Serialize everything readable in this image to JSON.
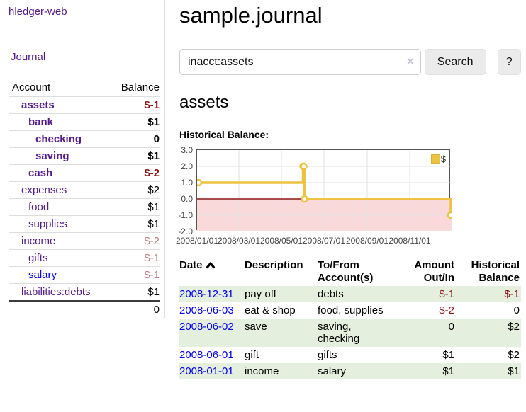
{
  "app": {
    "brand": "hledger-web",
    "nav_journal": "Journal"
  },
  "sidebar": {
    "headers": {
      "account": "Account",
      "balance": "Balance"
    },
    "accounts": [
      {
        "name": "assets",
        "depth": 1,
        "bold": true,
        "balance": "$-1",
        "negative": true,
        "link_color": "purple"
      },
      {
        "name": "bank",
        "depth": 2,
        "bold": true,
        "balance": "$1",
        "negative": false,
        "link_color": "purple"
      },
      {
        "name": "checking",
        "depth": 3,
        "bold": true,
        "balance": "0",
        "negative": false,
        "link_color": "purple"
      },
      {
        "name": "saving",
        "depth": 3,
        "bold": true,
        "balance": "$1",
        "negative": false,
        "link_color": "purple"
      },
      {
        "name": "cash",
        "depth": 2,
        "bold": true,
        "balance": "$-2",
        "negative": true,
        "link_color": "purple"
      },
      {
        "name": "expenses",
        "depth": 1,
        "bold": false,
        "balance": "$2",
        "negative": false,
        "link_color": "purple"
      },
      {
        "name": "food",
        "depth": 2,
        "bold": false,
        "balance": "$1",
        "negative": false,
        "link_color": "purple"
      },
      {
        "name": "supplies",
        "depth": 2,
        "bold": false,
        "balance": "$1",
        "negative": false,
        "link_color": "purple"
      },
      {
        "name": "income",
        "depth": 1,
        "bold": false,
        "balance": "$-2",
        "negative": true,
        "link_color": "purple"
      },
      {
        "name": "gifts",
        "depth": 2,
        "bold": false,
        "balance": "$-1",
        "negative": true,
        "link_color": "purple"
      },
      {
        "name": "salary",
        "depth": 2,
        "bold": false,
        "balance": "$-1",
        "negative": true,
        "link_color": "blue"
      },
      {
        "name": "liabilities:debts",
        "depth": 1,
        "bold": false,
        "balance": "$1",
        "negative": false,
        "link_color": "purple"
      }
    ],
    "total": "0"
  },
  "header": {
    "title": "sample.journal"
  },
  "search": {
    "value": "inacct:assets",
    "clear_icon": "×",
    "button_label": "Search",
    "help_label": "?"
  },
  "register": {
    "heading": "assets",
    "chart_label": "Historical Balance:",
    "table": {
      "headers": {
        "date": "Date",
        "description": "Description",
        "tofrom": "To/From Account(s)",
        "amount": "Amount Out/In",
        "balance": "Historical Balance"
      },
      "rows": [
        {
          "date": "2008-12-31",
          "description": "pay off",
          "accounts": "debts",
          "amount": "$-1",
          "amount_negative": true,
          "balance": "$-1",
          "balance_negative": true
        },
        {
          "date": "2008-06-03",
          "description": "eat & shop",
          "accounts": "food, supplies",
          "amount": "$-2",
          "amount_negative": true,
          "balance": "0",
          "balance_negative": false
        },
        {
          "date": "2008-06-02",
          "description": "save",
          "accounts": "saving, checking",
          "amount": "0",
          "amount_negative": false,
          "balance": "$2",
          "balance_negative": false
        },
        {
          "date": "2008-06-01",
          "description": "gift",
          "accounts": "gifts",
          "amount": "$1",
          "amount_negative": false,
          "balance": "$2",
          "balance_negative": false
        },
        {
          "date": "2008-01-01",
          "description": "income",
          "accounts": "salary",
          "amount": "$1",
          "amount_negative": false,
          "balance": "$1",
          "balance_negative": false
        }
      ]
    }
  },
  "chart_data": {
    "type": "line",
    "title": "Historical Balance",
    "step": true,
    "series": [
      {
        "name": "$",
        "color": "#edc240",
        "points": [
          [
            "2008-01-01",
            1
          ],
          [
            "2008-06-01",
            2
          ],
          [
            "2008-06-02",
            2
          ],
          [
            "2008-06-03",
            0
          ],
          [
            "2008-12-31",
            -1
          ]
        ]
      }
    ],
    "xlim": [
      "2008-01-01",
      "2008-12-31"
    ],
    "ylim": [
      -2,
      3
    ],
    "x_ticks": [
      "2008/01/01",
      "2008/03/01",
      "2008/05/01",
      "2008/07/01",
      "2008/09/01",
      "2008/11/01"
    ],
    "y_ticks": [
      "3.0",
      "2.0",
      "1.0",
      "0.0",
      "-1.0",
      "-2.0"
    ],
    "grid": true,
    "legend": {
      "label": "$",
      "position": "top-right"
    },
    "negative_region_color": "#f9d9d9",
    "zero_line_color": "#8b1717",
    "plot_border_color": "#545454"
  }
}
